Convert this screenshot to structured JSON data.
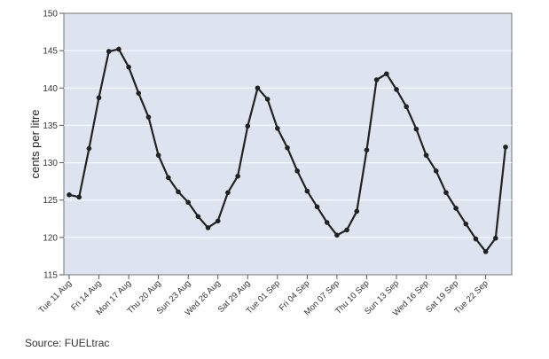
{
  "chart_data": {
    "type": "line",
    "ylabel": "cents per litre",
    "ylim": [
      115,
      150
    ],
    "y_ticks": [
      115,
      120,
      125,
      130,
      135,
      140,
      145,
      150
    ],
    "x_tick_labels": [
      "Tue 11 Aug",
      "Fri 14 Aug",
      "Mon 17 Aug",
      "Thu 20 Aug",
      "Sun 23 Aug",
      "Wed 26 Aug",
      "Sat 29 Aug",
      "Tue 01 Sep",
      "Fri 04 Sep",
      "Mon 07 Sep",
      "Thu 10 Sep",
      "Sun 13 Sep",
      "Wed 16 Sep",
      "Sat 19 Sep",
      "Tue 22 Sep"
    ],
    "x_tick_step_days": 3,
    "grid": "horizontal",
    "colors": {
      "line": "#222222",
      "plot_bg": "#dde4ef",
      "grid": "#ffffff"
    },
    "series": [
      {
        "values": [
          125.7,
          125.4,
          131.9,
          138.7,
          144.9,
          145.2,
          142.8,
          139.3,
          136.1,
          131.0,
          128.0,
          126.1,
          124.7,
          122.8,
          121.3,
          122.2,
          126.0,
          128.2,
          134.9,
          140.0,
          138.5,
          134.6,
          132.0,
          128.9,
          126.2,
          124.1,
          122.0,
          120.3,
          121.0,
          123.5,
          131.7,
          141.1,
          141.9,
          139.8,
          137.5,
          134.5,
          131.0,
          128.9,
          126.0,
          123.9,
          121.8,
          119.8,
          118.1,
          119.9,
          132.1
        ]
      }
    ]
  },
  "source": "Source: FUELtrac"
}
